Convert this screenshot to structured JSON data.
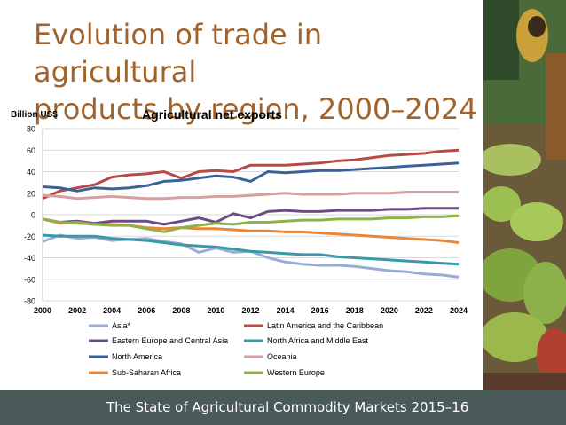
{
  "slide": {
    "title_line1": "Evolution of trade in agricultural",
    "title_line2": "products by region, 2000–2024",
    "footer": "The State of Agricultural Commodity Markets 2015–16"
  },
  "chart_data": {
    "type": "line",
    "title": "Agricultural net exports",
    "ylabel": "Billion US$",
    "xlim": [
      2000,
      2024
    ],
    "ylim": [
      -80,
      80
    ],
    "xticks": [
      2000,
      2002,
      2004,
      2006,
      2008,
      2010,
      2012,
      2014,
      2016,
      2018,
      2020,
      2022,
      2024
    ],
    "yticks": [
      80,
      60,
      40,
      20,
      0,
      -20,
      -40,
      -60,
      -80
    ],
    "grid": true,
    "legend_position": "bottom",
    "x": [
      2000,
      2001,
      2002,
      2003,
      2004,
      2005,
      2006,
      2007,
      2008,
      2009,
      2010,
      2011,
      2012,
      2013,
      2014,
      2015,
      2016,
      2017,
      2018,
      2019,
      2020,
      2021,
      2022,
      2023,
      2024
    ],
    "series": [
      {
        "name": "Asia*",
        "color": "#9aaed4",
        "values": [
          -25,
          -19,
          -22,
          -21,
          -24,
          -23,
          -22,
          -25,
          -27,
          -35,
          -31,
          -35,
          -34,
          -40,
          -44,
          -46,
          -47,
          -47,
          -48,
          -50,
          -52,
          -53,
          -55,
          -56,
          -58
        ]
      },
      {
        "name": "Latin America and the Caribbean",
        "color": "#b84a45",
        "values": [
          15,
          22,
          25,
          28,
          35,
          37,
          38,
          40,
          34,
          40,
          41,
          40,
          46,
          46,
          46,
          47,
          48,
          50,
          51,
          53,
          55,
          56,
          57,
          59,
          60
        ]
      },
      {
        "name": "Eastern Europe and Central Asia",
        "color": "#6b4d86",
        "values": [
          -4,
          -7,
          -6,
          -8,
          -6,
          -6,
          -6,
          -9,
          -6,
          -3,
          -7,
          1,
          -3,
          3,
          4,
          3,
          3,
          4,
          4,
          4,
          5,
          5,
          6,
          6,
          6
        ]
      },
      {
        "name": "North Africa and Middle East",
        "color": "#3a99a8",
        "values": [
          -19,
          -20,
          -20,
          -20,
          -22,
          -23,
          -24,
          -26,
          -28,
          -29,
          -30,
          -32,
          -34,
          -35,
          -36,
          -37,
          -37,
          -39,
          -40,
          -41,
          -42,
          -43,
          -44,
          -45,
          -46
        ]
      },
      {
        "name": "North America",
        "color": "#3c6199",
        "values": [
          26,
          25,
          22,
          25,
          24,
          25,
          27,
          31,
          32,
          34,
          36,
          35,
          31,
          40,
          39,
          40,
          41,
          41,
          42,
          43,
          44,
          45,
          46,
          47,
          48
        ]
      },
      {
        "name": "Oceania",
        "color": "#d4a0a0",
        "values": [
          18,
          17,
          15,
          16,
          17,
          16,
          15,
          15,
          16,
          16,
          17,
          17,
          18,
          19,
          20,
          19,
          19,
          19,
          20,
          20,
          20,
          21,
          21,
          21,
          21
        ]
      },
      {
        "name": "Sub-Saharan Africa",
        "color": "#e8873a",
        "values": [
          -4,
          -8,
          -7,
          -9,
          -9,
          -10,
          -12,
          -13,
          -12,
          -13,
          -13,
          -14,
          -15,
          -15,
          -16,
          -16,
          -17,
          -18,
          -19,
          -20,
          -21,
          -22,
          -23,
          -24,
          -26
        ]
      },
      {
        "name": "Western Europe",
        "color": "#8db348",
        "values": [
          -4,
          -7,
          -8,
          -9,
          -10,
          -10,
          -13,
          -16,
          -12,
          -10,
          -8,
          -9,
          -7,
          -7,
          -6,
          -5,
          -5,
          -4,
          -4,
          -4,
          -3,
          -3,
          -2,
          -2,
          -1
        ]
      }
    ]
  }
}
